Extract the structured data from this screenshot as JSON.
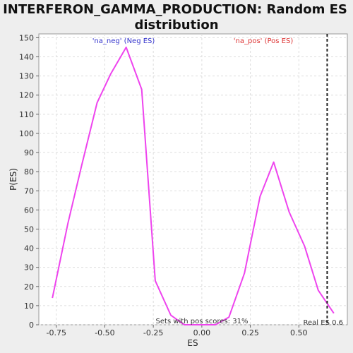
{
  "chart_data": {
    "type": "line",
    "title_line1": "INTERFERON_GAMMA_PRODUCTION: Random ES",
    "title_line2": "distribution",
    "xlabel": "ES",
    "ylabel": "P(ES)",
    "xlim": [
      -0.84,
      0.75
    ],
    "ylim": [
      0,
      152
    ],
    "xticks": [
      -0.75,
      -0.5,
      -0.25,
      0.0,
      0.25,
      0.5
    ],
    "xtick_labels": [
      "-0.75",
      "-0.50",
      "-0.25",
      "0.00",
      "0.25",
      "0.50"
    ],
    "yticks": [
      0,
      10,
      20,
      30,
      40,
      50,
      60,
      70,
      80,
      90,
      100,
      110,
      120,
      130,
      140,
      150
    ],
    "ytick_labels": [
      "0",
      "10",
      "20",
      "30",
      "40",
      "50",
      "60",
      "70",
      "80",
      "90",
      "100",
      "110",
      "120",
      "130",
      "140",
      "150"
    ],
    "grid": true,
    "series": [
      {
        "color": "#ee44ee",
        "x": [
          -0.77,
          -0.69,
          -0.62,
          -0.54,
          -0.47,
          -0.39,
          -0.31,
          -0.24,
          -0.16,
          -0.09,
          -0.01,
          0.07,
          0.14,
          0.22,
          0.3,
          0.37,
          0.45,
          0.53,
          0.6,
          0.68
        ],
        "y": [
          14,
          53,
          83,
          116,
          131,
          145,
          123,
          23,
          5,
          0,
          0,
          0,
          4,
          27,
          67,
          85,
          59,
          41,
          18,
          6
        ]
      }
    ],
    "real_es": {
      "x": 0.646,
      "label": "Real ES 0.6"
    },
    "annotations": {
      "neg_label": "'na_neg' (Neg ES)",
      "neg_color": "#3333cc",
      "pos_label": "'na_pos' (Pos ES)",
      "pos_color": "#dd3333",
      "sets_label": "Sets with pos scores: 31%"
    }
  }
}
